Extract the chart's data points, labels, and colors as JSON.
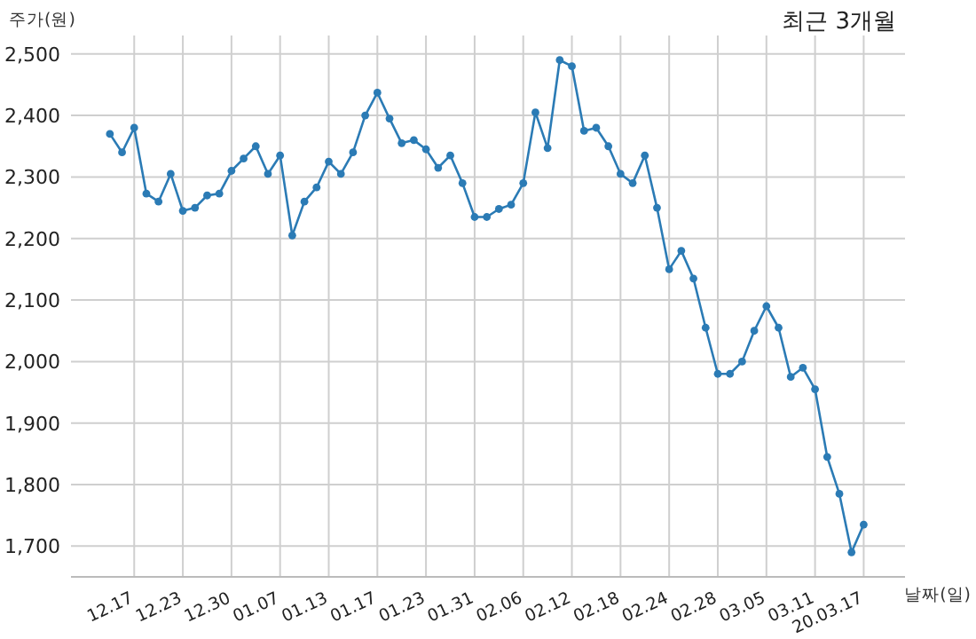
{
  "chart_data": {
    "type": "line",
    "title": "최근 3개월",
    "ylabel": "주가(원)",
    "xlabel": "날짜(일)",
    "categories": [
      null,
      null,
      "12.17",
      null,
      null,
      null,
      "12.23",
      null,
      null,
      null,
      "12.30",
      null,
      null,
      null,
      "01.07",
      null,
      null,
      null,
      "01.13",
      null,
      null,
      null,
      "01.17",
      null,
      null,
      null,
      "01.23",
      null,
      null,
      null,
      "01.31",
      null,
      null,
      null,
      "02.06",
      null,
      null,
      null,
      "02.12",
      null,
      null,
      null,
      "02.18",
      null,
      null,
      null,
      "02.24",
      null,
      null,
      null,
      "02.28",
      null,
      null,
      null,
      "03.05",
      null,
      null,
      null,
      "03.11",
      null,
      null,
      null,
      "20.03.17"
    ],
    "series": [
      {
        "color": "#2b7bb5",
        "values": [
          2370,
          2340,
          2380,
          2273,
          2260,
          2305,
          2245,
          2250,
          2270,
          2273,
          2310,
          2330,
          2350,
          2305,
          2335,
          2205,
          2260,
          2283,
          2325,
          2305,
          2340,
          2400,
          2437,
          2395,
          2355,
          2360,
          2345,
          2315,
          2335,
          2290,
          2235,
          2235,
          2248,
          2255,
          2290,
          2405,
          2347,
          2490,
          2480,
          2375,
          2380,
          2350,
          2305,
          2290,
          2335,
          2250,
          2150,
          2180,
          2135,
          2055,
          1980,
          1980,
          2000,
          2050,
          2090,
          2055,
          1975,
          1990,
          1955,
          1845,
          1785,
          1690,
          1735
        ]
      }
    ],
    "ylim": [
      1650,
      2530
    ],
    "yticks": [
      {
        "value": 1700,
        "label": "1,700"
      },
      {
        "value": 1800,
        "label": "1,800"
      },
      {
        "value": 1900,
        "label": "1,900"
      },
      {
        "value": 2000,
        "label": "2,000"
      },
      {
        "value": 2100,
        "label": "2,100"
      },
      {
        "value": 2200,
        "label": "2,200"
      },
      {
        "value": 2300,
        "label": "2,300"
      },
      {
        "value": 2400,
        "label": "2,400"
      },
      {
        "value": 2500,
        "label": "2,500"
      }
    ],
    "grid": true,
    "marker": "circle",
    "line_style": "solid"
  }
}
